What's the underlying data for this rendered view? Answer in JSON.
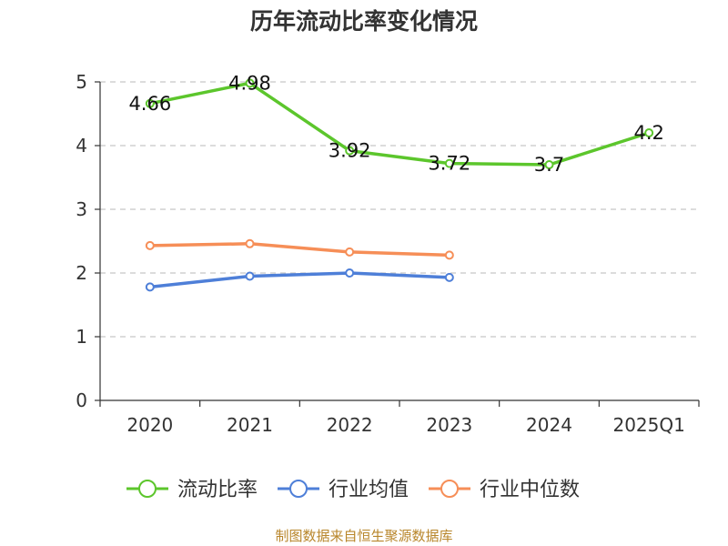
{
  "chart_data": {
    "type": "line",
    "title": "历年流动比率变化情况",
    "categories": [
      "2020",
      "2021",
      "2022",
      "2023",
      "2024",
      "2025Q1"
    ],
    "ylim": [
      0,
      5
    ],
    "yticks": [
      "0",
      "1",
      "2",
      "3",
      "4",
      "5"
    ],
    "grid": true,
    "legend_position": "bottom",
    "series": [
      {
        "name": "流动比率",
        "color": "#5cc62c",
        "values": [
          4.66,
          4.98,
          3.92,
          3.72,
          3.7,
          4.2
        ],
        "labels": [
          "4.66",
          "4.98",
          "3.92",
          "3.72",
          "3.7",
          "4.2"
        ]
      },
      {
        "name": "行业均值",
        "color": "#4e7fd8",
        "values": [
          1.78,
          1.95,
          2.0,
          1.93,
          null,
          null
        ]
      },
      {
        "name": "行业中位数",
        "color": "#f68e57",
        "values": [
          2.43,
          2.46,
          2.33,
          2.28,
          null,
          null
        ]
      }
    ]
  },
  "footer": "制图数据来自恒生聚源数据库"
}
